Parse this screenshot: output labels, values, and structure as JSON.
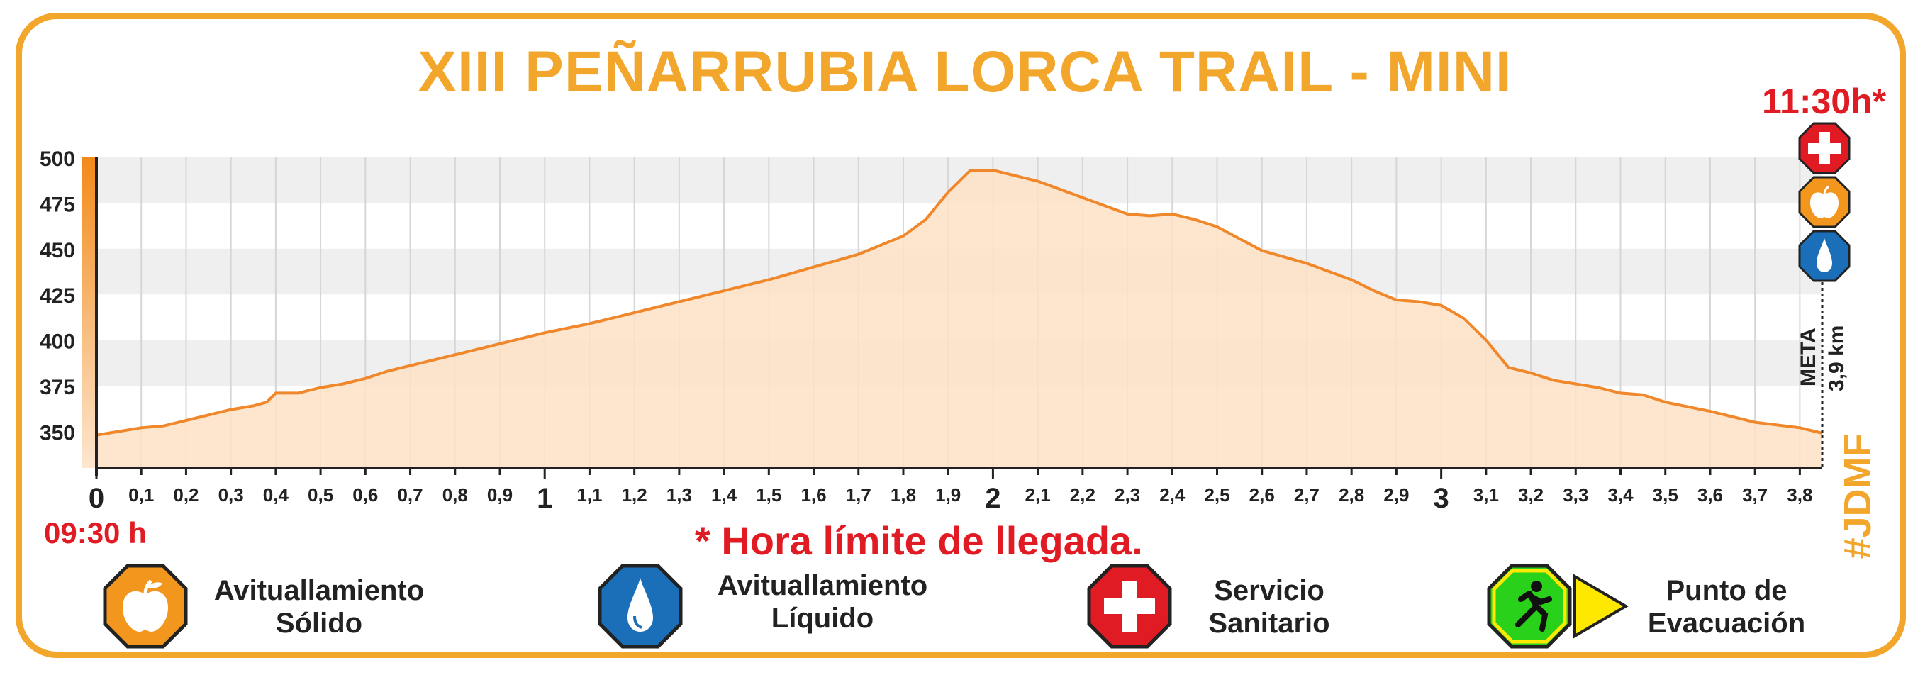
{
  "title": "XIII PEÑARRUBIA LORCA TRAIL - MINI",
  "start_time": "09:30 h",
  "end_time": "11:30h*",
  "time_note": "* Hora límite de llegada.",
  "hashtag": "#JDMF",
  "finish": {
    "label": "META",
    "distance": "3,9 km"
  },
  "colors": {
    "accent": "#f2a72c",
    "profile_line": "#f0872a",
    "profile_fill": "#fde2c4",
    "red": "#e01b24",
    "blue": "#1a6fb8",
    "green": "#2ad11a",
    "yellow": "#ffe800"
  },
  "legend": [
    {
      "icon": "apple-icon",
      "label": "Avituallamiento\nSólido"
    },
    {
      "icon": "water-drop-icon",
      "label": "Avituallamiento\nLíquido"
    },
    {
      "icon": "medical-cross-icon",
      "label": "Servicio\nSanitario"
    },
    {
      "icon": "runner-evacuation-icon",
      "label": "Punto de\nEvacuación"
    }
  ],
  "finish_services": [
    "medical-cross-icon",
    "apple-icon",
    "water-drop-icon"
  ],
  "chart_data": {
    "type": "area",
    "title": "XIII PEÑARRUBIA LORCA TRAIL - MINI",
    "xlabel": "",
    "ylabel": "",
    "xlim": [
      0,
      3.85
    ],
    "ylim": [
      330,
      500
    ],
    "yticks": [
      350,
      375,
      400,
      425,
      450,
      475,
      500
    ],
    "xticks": [
      {
        "v": 0,
        "label": "0",
        "major": true
      },
      {
        "v": 0.1,
        "label": "0,1"
      },
      {
        "v": 0.2,
        "label": "0,2"
      },
      {
        "v": 0.3,
        "label": "0,3"
      },
      {
        "v": 0.4,
        "label": "0,4"
      },
      {
        "v": 0.5,
        "label": "0,5"
      },
      {
        "v": 0.6,
        "label": "0,6"
      },
      {
        "v": 0.7,
        "label": "0,7"
      },
      {
        "v": 0.8,
        "label": "0,8"
      },
      {
        "v": 0.9,
        "label": "0,9"
      },
      {
        "v": 1,
        "label": "1",
        "major": true
      },
      {
        "v": 1.1,
        "label": "1,1"
      },
      {
        "v": 1.2,
        "label": "1,2"
      },
      {
        "v": 1.3,
        "label": "1,3"
      },
      {
        "v": 1.4,
        "label": "1,4"
      },
      {
        "v": 1.5,
        "label": "1,5"
      },
      {
        "v": 1.6,
        "label": "1,6"
      },
      {
        "v": 1.7,
        "label": "1,7"
      },
      {
        "v": 1.8,
        "label": "1,8"
      },
      {
        "v": 1.9,
        "label": "1,9"
      },
      {
        "v": 2,
        "label": "2",
        "major": true
      },
      {
        "v": 2.1,
        "label": "2,1"
      },
      {
        "v": 2.2,
        "label": "2,2"
      },
      {
        "v": 2.3,
        "label": "2,3"
      },
      {
        "v": 2.4,
        "label": "2,4"
      },
      {
        "v": 2.5,
        "label": "2,5"
      },
      {
        "v": 2.6,
        "label": "2,6"
      },
      {
        "v": 2.7,
        "label": "2,7"
      },
      {
        "v": 2.8,
        "label": "2,8"
      },
      {
        "v": 2.9,
        "label": "2,9"
      },
      {
        "v": 3,
        "label": "3",
        "major": true
      },
      {
        "v": 3.1,
        "label": "3,1"
      },
      {
        "v": 3.2,
        "label": "3,2"
      },
      {
        "v": 3.3,
        "label": "3,3"
      },
      {
        "v": 3.4,
        "label": "3,4"
      },
      {
        "v": 3.5,
        "label": "3,5"
      },
      {
        "v": 3.6,
        "label": "3,6"
      },
      {
        "v": 3.7,
        "label": "3,7"
      },
      {
        "v": 3.8,
        "label": "3,8"
      }
    ],
    "grid": true,
    "series": [
      {
        "x": [
          0,
          0.05,
          0.1,
          0.15,
          0.2,
          0.25,
          0.3,
          0.35,
          0.38,
          0.4,
          0.45,
          0.5,
          0.55,
          0.6,
          0.65,
          0.7,
          0.8,
          0.9,
          1.0,
          1.1,
          1.2,
          1.3,
          1.4,
          1.5,
          1.6,
          1.7,
          1.75,
          1.8,
          1.85,
          1.9,
          1.95,
          2.0,
          2.05,
          2.1,
          2.2,
          2.3,
          2.35,
          2.4,
          2.45,
          2.5,
          2.6,
          2.7,
          2.8,
          2.85,
          2.9,
          2.95,
          3.0,
          3.05,
          3.1,
          3.15,
          3.2,
          3.25,
          3.3,
          3.35,
          3.4,
          3.45,
          3.5,
          3.6,
          3.7,
          3.8,
          3.85
        ],
        "values": [
          348,
          350,
          352,
          353,
          356,
          359,
          362,
          364,
          366,
          371,
          371,
          374,
          376,
          379,
          383,
          386,
          392,
          398,
          404,
          409,
          415,
          421,
          427,
          433,
          440,
          447,
          452,
          457,
          466,
          481,
          493,
          493,
          490,
          487,
          478,
          469,
          468,
          469,
          466,
          462,
          449,
          442,
          433,
          427,
          422,
          421,
          419,
          412,
          400,
          385,
          382,
          378,
          376,
          374,
          371,
          370,
          366,
          361,
          355,
          352,
          349
        ]
      }
    ]
  }
}
